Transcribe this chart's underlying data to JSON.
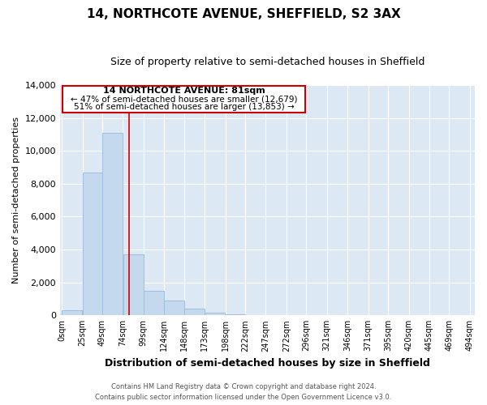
{
  "title": "14, NORTHCOTE AVENUE, SHEFFIELD, S2 3AX",
  "subtitle": "Size of property relative to semi-detached houses in Sheffield",
  "xlabel": "Distribution of semi-detached houses by size in Sheffield",
  "ylabel": "Number of semi-detached properties",
  "bar_values": [
    300,
    8700,
    11100,
    3700,
    1500,
    900,
    400,
    150,
    80,
    20,
    10,
    5,
    2,
    1,
    0,
    0,
    0,
    0,
    0,
    0
  ],
  "bar_left_edges": [
    0,
    25,
    49,
    74,
    99,
    124,
    148,
    173,
    198,
    222,
    247,
    272,
    296,
    321,
    346,
    371,
    395,
    420,
    445,
    469
  ],
  "bar_widths": [
    25,
    24,
    25,
    25,
    25,
    24,
    25,
    25,
    24,
    25,
    25,
    24,
    25,
    25,
    25,
    24,
    25,
    25,
    24,
    25
  ],
  "bar_color": "#c5d9ee",
  "bar_edgecolor": "#a0bedd",
  "tick_labels": [
    "0sqm",
    "25sqm",
    "49sqm",
    "74sqm",
    "99sqm",
    "124sqm",
    "148sqm",
    "173sqm",
    "198sqm",
    "222sqm",
    "247sqm",
    "272sqm",
    "296sqm",
    "321sqm",
    "346sqm",
    "371sqm",
    "395sqm",
    "420sqm",
    "445sqm",
    "469sqm",
    "494sqm"
  ],
  "tick_positions": [
    0,
    25,
    49,
    74,
    99,
    124,
    148,
    173,
    198,
    222,
    247,
    272,
    296,
    321,
    346,
    371,
    395,
    420,
    445,
    469,
    494
  ],
  "property_size": 81,
  "vline_color": "#cc0000",
  "annotation_title": "14 NORTHCOTE AVENUE: 81sqm",
  "annotation_line1": "← 47% of semi-detached houses are smaller (12,679)",
  "annotation_line2": "51% of semi-detached houses are larger (13,853) →",
  "annotation_box_color": "#cc0000",
  "annotation_fill": "#ffffff",
  "ylim": [
    0,
    14000
  ],
  "yticks": [
    0,
    2000,
    4000,
    6000,
    8000,
    10000,
    12000,
    14000
  ],
  "xlim": [
    -2,
    500
  ],
  "bg_color": "#dce9f5",
  "fig_bg_color": "#ffffff",
  "grid_color": "#ffffff",
  "footer_line1": "Contains HM Land Registry data © Crown copyright and database right 2024.",
  "footer_line2": "Contains public sector information licensed under the Open Government Licence v3.0."
}
